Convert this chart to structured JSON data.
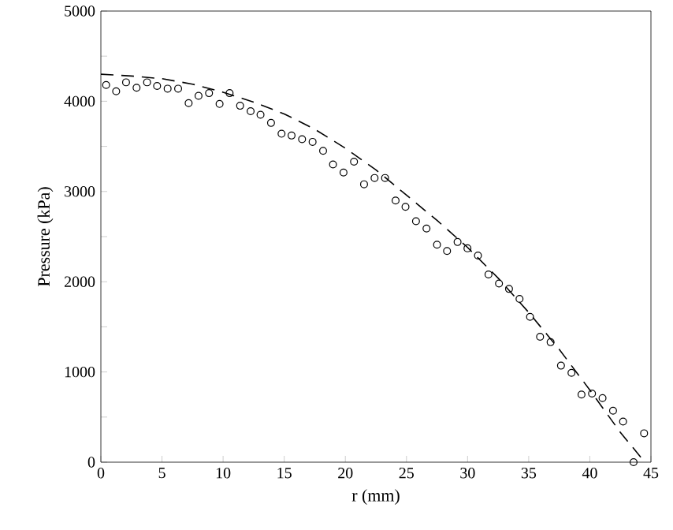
{
  "chart_data": {
    "type": "scatter",
    "xlabel": "r (mm)",
    "ylabel": "Pressure (kPa)",
    "xlim": [
      0,
      45
    ],
    "ylim": [
      0,
      5000
    ],
    "xticks": [
      0,
      5,
      10,
      15,
      20,
      25,
      30,
      35,
      40,
      45
    ],
    "yticks": [
      0,
      1000,
      2000,
      3000,
      4000,
      5000
    ],
    "grid": false,
    "series": [
      {
        "color": "#000000",
        "marker": "circle",
        "x": [
          0.43,
          1.25,
          2.06,
          2.92,
          3.78,
          4.6,
          5.46,
          6.32,
          7.18,
          7.99,
          8.85,
          9.71,
          10.53,
          11.39,
          12.25,
          13.06,
          13.92,
          14.78,
          15.6,
          16.46,
          17.32,
          18.18,
          18.99,
          19.85,
          20.71,
          21.53,
          22.39,
          23.25,
          24.11,
          24.92,
          25.78,
          26.64,
          27.5,
          28.32,
          29.18,
          29.99,
          30.85,
          31.71,
          32.57,
          33.39,
          34.25,
          35.11,
          35.93,
          36.79,
          37.64,
          38.5,
          39.32,
          40.18,
          41.04,
          41.9,
          42.72,
          43.58,
          44.44
        ],
        "values": [
          4180,
          4110,
          4210,
          4150,
          4210,
          4170,
          4140,
          4140,
          3980,
          4060,
          4090,
          3970,
          4090,
          3950,
          3890,
          3850,
          3760,
          3640,
          3620,
          3580,
          3550,
          3450,
          3300,
          3210,
          3330,
          3080,
          3150,
          3150,
          2900,
          2830,
          2670,
          2590,
          2410,
          2340,
          2440,
          2370,
          2290,
          2080,
          1980,
          1920,
          1810,
          1610,
          1390,
          1330,
          1070,
          990,
          750,
          760,
          710,
          570,
          450,
          0,
          320
        ]
      },
      {
        "type": "line",
        "color": "#000000",
        "marker": "none",
        "line_style": "dashed",
        "x": [
          0,
          2.5,
          5,
          7.5,
          10,
          12.5,
          15,
          17.5,
          20,
          22.5,
          25,
          27.5,
          30,
          32.5,
          35,
          37.5,
          40,
          42.5,
          44.2
        ],
        "values": [
          4300,
          4280,
          4250,
          4190,
          4100,
          3990,
          3860,
          3690,
          3480,
          3240,
          2960,
          2680,
          2380,
          2040,
          1660,
          1250,
          800,
          330,
          50
        ]
      }
    ]
  }
}
